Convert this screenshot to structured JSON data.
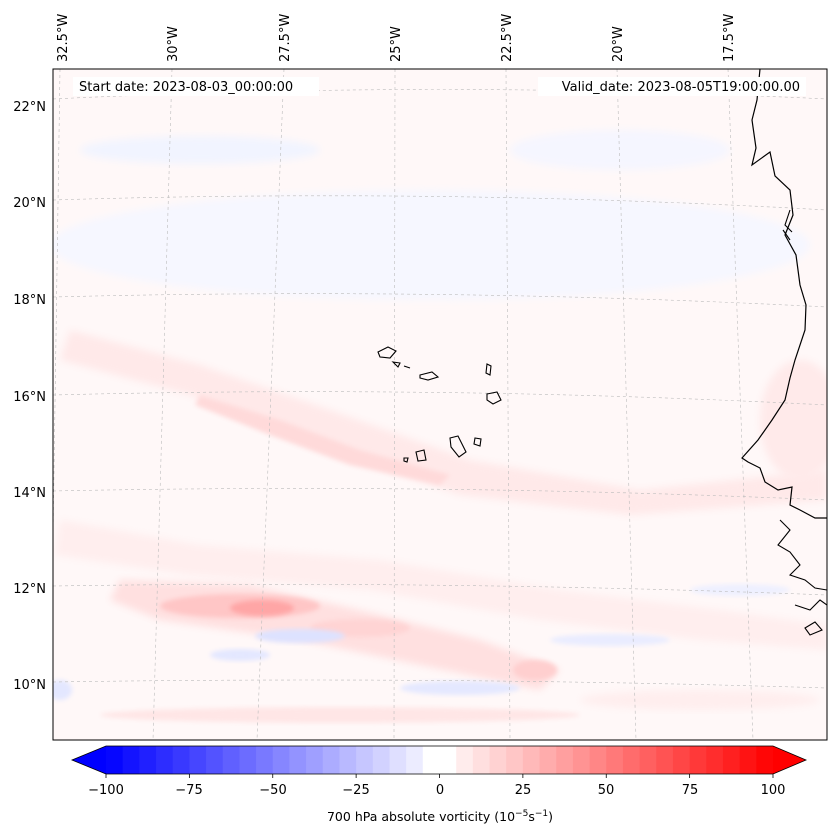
{
  "map": {
    "start_date": "Start date: 2023-08-03_00:00:00",
    "valid_date": "Valid_date: 2023-08-05T19:00:00.00",
    "lon_ticks": [
      "32.5°W",
      "30°W",
      "27.5°W",
      "25°W",
      "22.5°W",
      "20°W",
      "17.5°W"
    ],
    "lat_ticks": [
      "22°N",
      "20°N",
      "18°N",
      "16°N",
      "14°N",
      "12°N",
      "10°N"
    ],
    "variable": "700 hPa absolute vorticity",
    "units_base": "(10",
    "units_exp1": "−5",
    "units_mid": "s",
    "units_exp2": "−1",
    "units_close": ")"
  },
  "colorbar": {
    "vmin": -100,
    "vmax": 100,
    "ticks": [
      "−100",
      "−75",
      "−50",
      "−25",
      "0",
      "25",
      "50",
      "75",
      "100"
    ],
    "low_color": "#0000ff",
    "mid_color": "#ffffff",
    "high_color": "#ff0000"
  },
  "colors": {
    "coastline": "#000000",
    "gridline": "#bbbbbb",
    "field_background": "#fff8f8"
  }
}
